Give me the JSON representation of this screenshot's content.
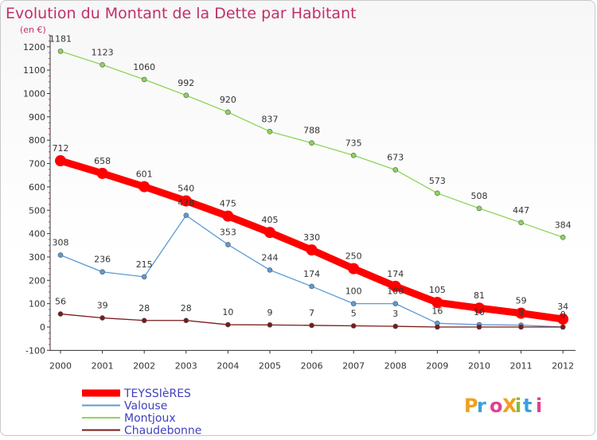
{
  "chart_data": {
    "type": "line",
    "title": "Evolution du Montant de la Dette par Habitant",
    "subtitle": "(en €)",
    "x": [
      "2000",
      "2001",
      "2002",
      "2003",
      "2004",
      "2005",
      "2006",
      "2007",
      "2008",
      "2009",
      "2010",
      "2011",
      "2012"
    ],
    "y_ticks": [
      "-100",
      "0",
      "100",
      "200",
      "300",
      "400",
      "500",
      "600",
      "700",
      "800",
      "900",
      "1000",
      "1100",
      "1200"
    ],
    "ylim": [
      -100,
      1250
    ],
    "grid": false,
    "legend_position": "bottom-left",
    "series": [
      {
        "name": "Montjoux",
        "color": "#8ed45a",
        "values": [
          1181,
          1123,
          1060,
          992,
          920,
          837,
          788,
          735,
          673,
          573,
          508,
          447,
          384
        ],
        "labels": [
          "1181",
          "1123",
          "1060",
          "992",
          "920",
          "837",
          "788",
          "735",
          "673",
          "573",
          "508",
          "447",
          "384"
        ]
      },
      {
        "name": "Valouse",
        "color": "#5b9bd5",
        "values": [
          308,
          236,
          215,
          478,
          353,
          244,
          174,
          100,
          100,
          16,
          10,
          8,
          0
        ],
        "labels": [
          "308",
          "236",
          "215",
          "478",
          "353",
          "244",
          "174",
          "100",
          "100",
          "16",
          "10",
          "8",
          "0"
        ]
      },
      {
        "name": "Chaudebonne",
        "color": "#7a1a1a",
        "values": [
          56,
          39,
          28,
          28,
          10,
          9,
          7,
          5,
          3,
          0,
          0,
          0,
          0
        ],
        "labels": [
          "56",
          "39",
          "28",
          "28",
          "10",
          "9",
          "7",
          "5",
          "3",
          "",
          "",
          "",
          ""
        ]
      },
      {
        "name": "TEYSSIèRES",
        "color": "#ff0000",
        "values": [
          712,
          658,
          601,
          540,
          475,
          405,
          330,
          250,
          174,
          105,
          81,
          59,
          34
        ],
        "labels": [
          "712",
          "658",
          "601",
          "540",
          "475",
          "405",
          "330",
          "250",
          "174",
          "105",
          "81",
          "59",
          "34"
        ]
      }
    ],
    "legend": [
      "TEYSSIèRES",
      "Valouse",
      "Montjoux",
      "Chaudebonne"
    ]
  },
  "logo": {
    "text": "ProXiti"
  }
}
